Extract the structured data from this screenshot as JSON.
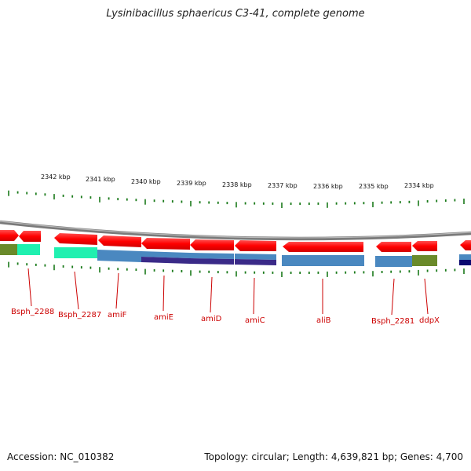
{
  "title": "Lysinibacillus sphaericus C3-41, complete genome",
  "footer": {
    "accession": "Accession: NC_010382",
    "summary": "Topology: circular; Length: 4,639,821 bp; Genes: 4,700"
  },
  "kbp_labels": [
    "2342 kbp",
    "2341 kbp",
    "2340 kbp",
    "2339 kbp",
    "2338 kbp",
    "2337 kbp",
    "2336 kbp",
    "2335 kbp",
    "2334 kbp"
  ],
  "gene_labels": [
    "Bsph_2288",
    "Bsph_2287",
    "amiF",
    "amiE",
    "amiD",
    "amiC",
    "aliB",
    "Bsph_2281",
    "ddpX"
  ],
  "colors": {
    "gene": "#ff0000",
    "backbone": "#808080",
    "tick": "#1a7a1a",
    "cog_blue": "#4a88c0",
    "cog_navy": "#3a2a88",
    "cog_green": "#6a8a2a",
    "cog_cyan": "#20f0b0",
    "label": "#cc0000"
  }
}
